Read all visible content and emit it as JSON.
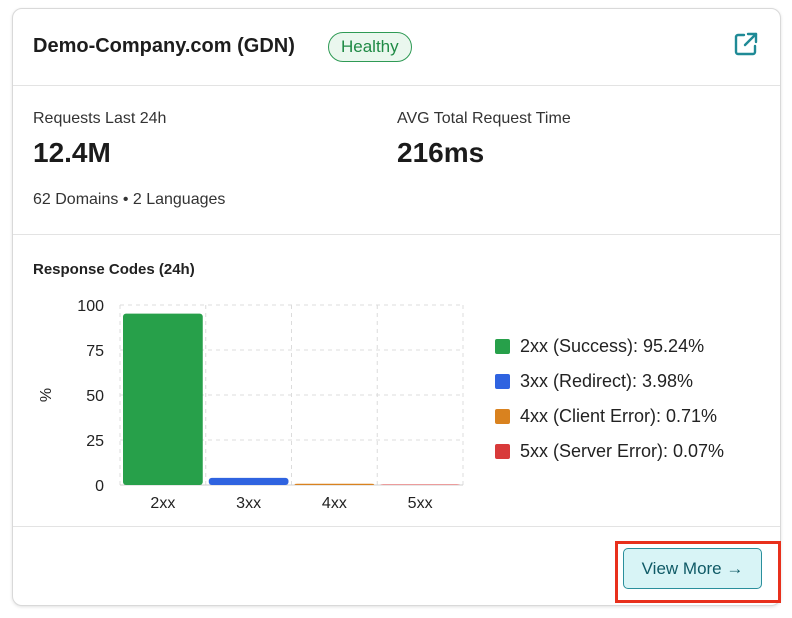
{
  "header": {
    "title": "Demo-Company.com (GDN)",
    "status_badge": "Healthy",
    "external_link_icon": "external-link-icon"
  },
  "stats": {
    "requests_label": "Requests Last 24h",
    "requests_value": "12.4M",
    "avg_time_label": "AVG Total Request Time",
    "avg_time_value": "216ms",
    "meta": "62 Domains • 2 Languages"
  },
  "chart_title": "Response Codes (24h)",
  "chart_data": {
    "type": "bar",
    "categories": [
      "2xx",
      "3xx",
      "4xx",
      "5xx"
    ],
    "values": [
      95.24,
      3.98,
      0.71,
      0.07
    ],
    "colors": [
      "#27a04a",
      "#2f63e0",
      "#d9821f",
      "#d83a3a"
    ],
    "ylabel": "%",
    "xlabel": "",
    "ylim": [
      0,
      100
    ],
    "yticks": [
      0,
      25,
      50,
      75,
      100
    ],
    "grid": true
  },
  "legend": [
    {
      "label": "2xx (Success): 95.24%",
      "color": "#27a04a"
    },
    {
      "label": "3xx (Redirect): 3.98%",
      "color": "#2f63e0"
    },
    {
      "label": "4xx (Client Error): 0.71%",
      "color": "#d9821f"
    },
    {
      "label": "5xx (Server Error): 0.07%",
      "color": "#d83a3a"
    }
  ],
  "footer": {
    "view_more_label": "View More →"
  }
}
